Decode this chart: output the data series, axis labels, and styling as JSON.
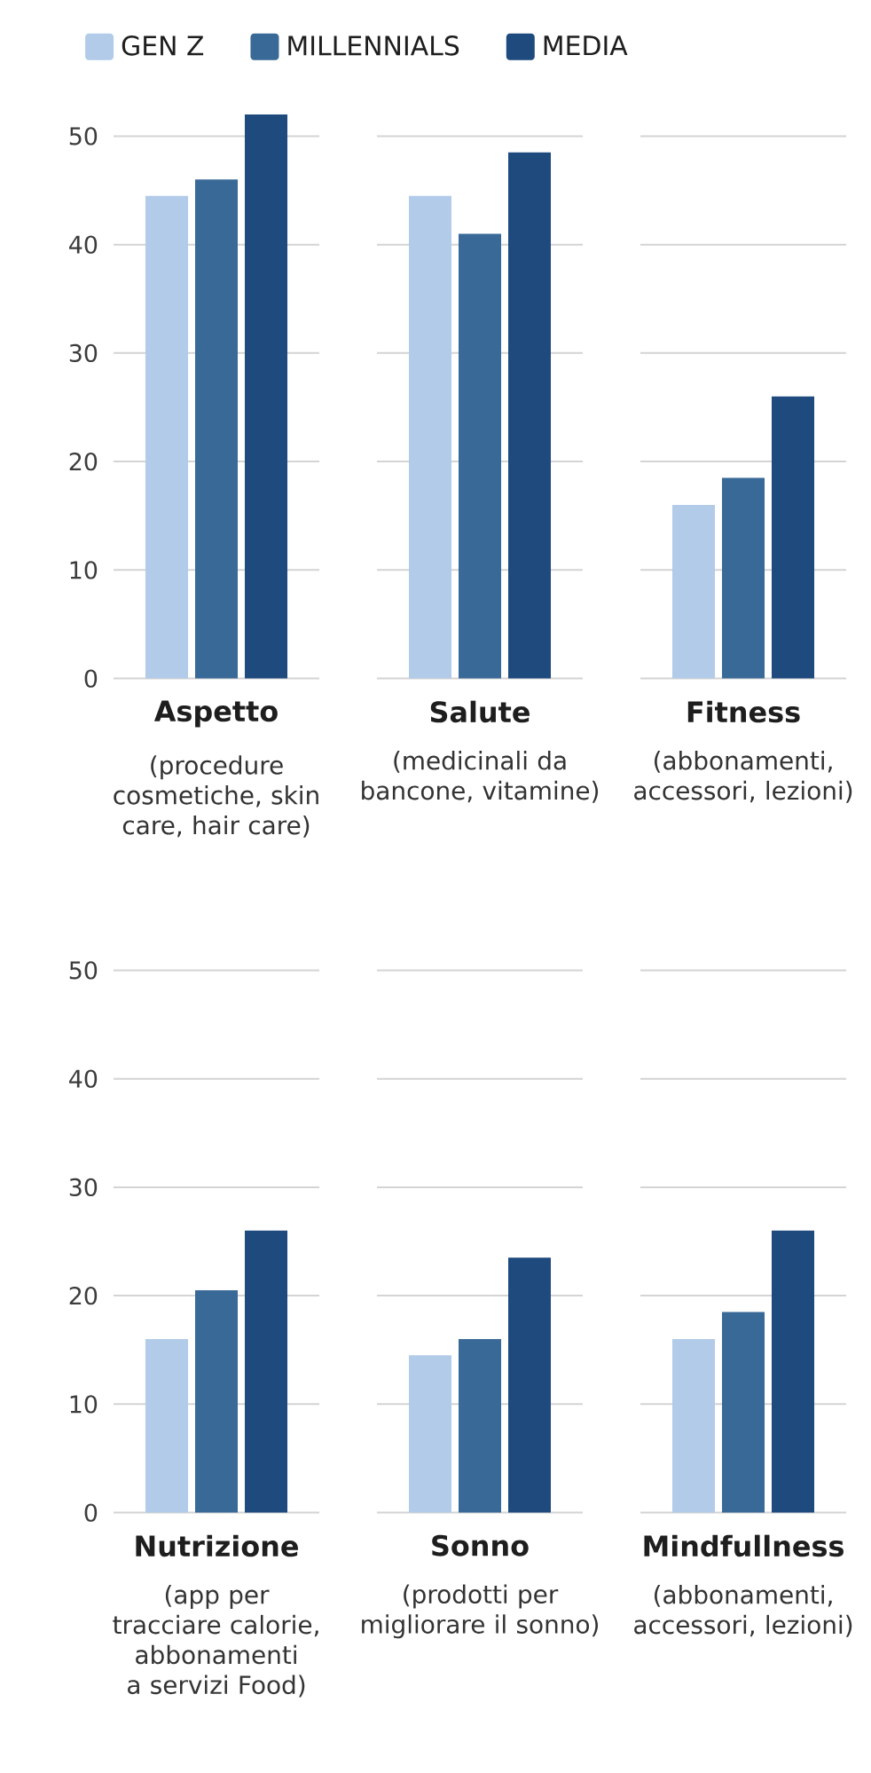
{
  "chart_data": [
    {
      "type": "bar",
      "categories": [
        "Aspetto"
      ],
      "xlabel": "(procedure cosmetiche, skin care, hair care)",
      "series": [
        {
          "name": "GEN Z",
          "color": "#b1cbe9",
          "values": [
            44.5
          ]
        },
        {
          "name": "MILLENNIALS",
          "color": "#386997",
          "values": [
            46
          ]
        },
        {
          "name": "MEDIA",
          "color": "#1e4a7d",
          "values": [
            52
          ]
        }
      ],
      "ylim": [
        0,
        52
      ],
      "yticks": [
        0,
        10,
        20,
        30,
        40,
        50
      ],
      "grid": "y",
      "legend": "top"
    },
    {
      "type": "bar",
      "categories": [
        "Salute"
      ],
      "xlabel": "(medicinali da bancone, vitamine)",
      "series": [
        {
          "color": "#b1cbe9",
          "values": [
            44.5
          ]
        },
        {
          "color": "#386997",
          "values": [
            41
          ]
        },
        {
          "color": "#1e4a7d",
          "values": [
            48.5
          ]
        }
      ],
      "ylim": [
        0,
        50
      ],
      "yticks": [
        0,
        10,
        20,
        30,
        40,
        50
      ],
      "grid": "y",
      "tick_labels": "x"
    },
    {
      "type": "bar",
      "categories": [
        "Fitness"
      ],
      "xlabel": "(abbonamenti, accessori, lezioni)",
      "series": [
        {
          "color": "#b1cbe9",
          "values": [
            16
          ]
        },
        {
          "color": "#386997",
          "values": [
            18.5
          ]
        },
        {
          "color": "#1e4a7d",
          "values": [
            26
          ]
        }
      ],
      "ylim": [
        0,
        50
      ],
      "yticks": [
        0,
        10,
        20,
        30,
        40,
        50
      ],
      "grid": "y",
      "tick_labels": "x"
    },
    {
      "type": "bar",
      "categories": [
        "Nutrizione"
      ],
      "xlabel": "(app per tracciare calorie, abbonamenti a servizi Food)",
      "series": [
        {
          "color": "#b1cbe9",
          "values": [
            16
          ]
        },
        {
          "color": "#386997",
          "values": [
            20.5
          ]
        },
        {
          "color": "#1e4a7d",
          "values": [
            26
          ]
        }
      ],
      "ylim": [
        0,
        50
      ],
      "yticks": [
        0,
        10,
        20,
        30,
        40,
        50
      ],
      "grid": "y"
    },
    {
      "type": "bar",
      "categories": [
        "Sonno"
      ],
      "xlabel": "(prodotti per migliorare il sonno)",
      "series": [
        {
          "color": "#b1cbe9",
          "values": [
            14.5
          ]
        },
        {
          "color": "#386997",
          "values": [
            16
          ]
        },
        {
          "color": "#1e4a7d",
          "values": [
            23.5
          ]
        }
      ],
      "ylim": [
        0,
        50
      ],
      "yticks": [
        0,
        10,
        20,
        30,
        40,
        50
      ],
      "grid": "y",
      "tick_labels": "x"
    },
    {
      "type": "bar",
      "categories": [
        "Mindfullness"
      ],
      "xlabel": "(abbonamenti, accessori, lezioni)",
      "series": [
        {
          "color": "#b1cbe9",
          "values": [
            16
          ]
        },
        {
          "color": "#386997",
          "values": [
            18.5
          ]
        },
        {
          "color": "#1e4a7d",
          "values": [
            26
          ]
        }
      ],
      "ylim": [
        0,
        50
      ],
      "yticks": [
        0,
        10,
        20,
        30,
        40,
        50
      ],
      "grid": "y",
      "tick_labels": "x"
    }
  ]
}
